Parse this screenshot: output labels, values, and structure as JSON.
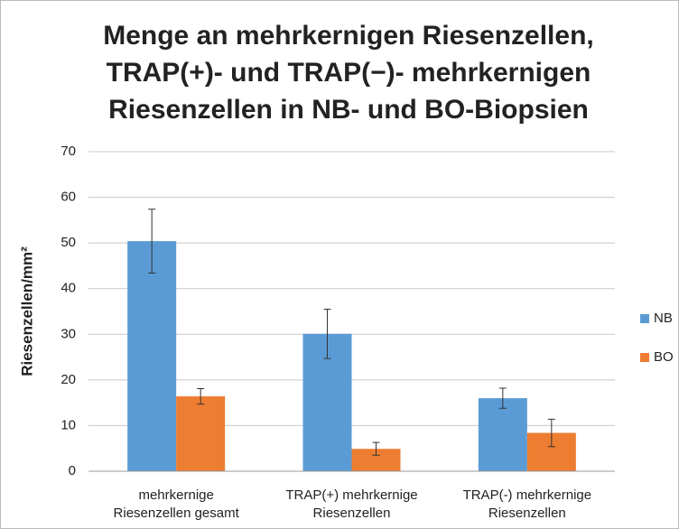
{
  "chart_data": {
    "type": "bar",
    "title": "Menge an mehrkernigen Riesenzellen,\nTRAP(+)- und TRAP(−)- mehrkernigen\nRiesenzellen in NB- und BO-Biopsien",
    "y_label": "Riesenzellen/mm²",
    "categories": [
      "mehrkernige\nRiesenzellen gesamt",
      "TRAP(+) mehrkernige\nRiesenzellen",
      "TRAP(-) mehrkernige\nRiesenzellen"
    ],
    "series": [
      {
        "name": "NB",
        "color": "#5b9bd5",
        "values": [
          50.4,
          30.1,
          16.0
        ],
        "errors": [
          7.0,
          5.4,
          2.2
        ]
      },
      {
        "name": "BO",
        "color": "#ed7d31",
        "values": [
          16.4,
          4.9,
          8.4
        ],
        "errors": [
          1.7,
          1.4,
          3.0
        ]
      }
    ],
    "ylim": [
      0,
      70
    ],
    "yticks": [
      0,
      10,
      20,
      30,
      40,
      50,
      60,
      70
    ],
    "grid": true,
    "legend": "right"
  }
}
